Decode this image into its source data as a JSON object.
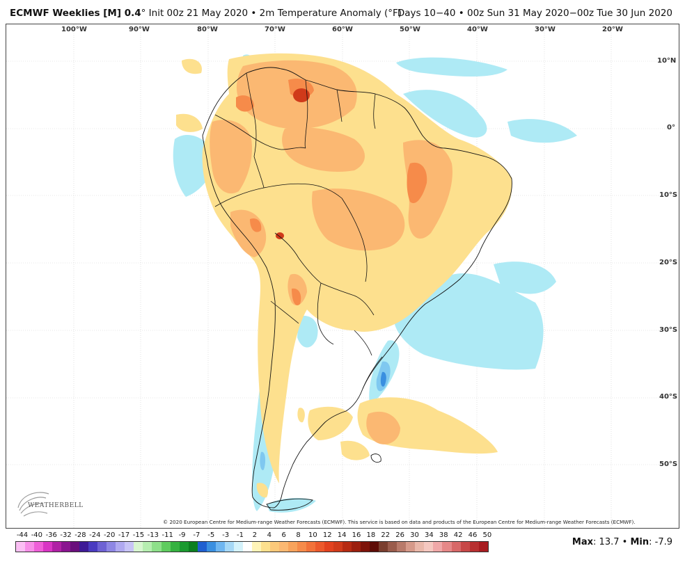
{
  "header": {
    "title_bold": "ECMWF Weeklies [M] 0.4",
    "title_rest": "° Init 00z 21 May 2020 • 2m Temperature Anomaly (°F)",
    "valid": "Days 10−40 • 00z Sun 31 May 2020−00z Tue 30 Jun 2020"
  },
  "map": {
    "lon_labels": [
      "100°W",
      "90°W",
      "80°W",
      "70°W",
      "60°W",
      "50°W",
      "40°W",
      "30°W",
      "20°W"
    ],
    "lat_labels": [
      "10°N",
      "0°",
      "10°S",
      "20°S",
      "30°S",
      "40°S",
      "50°S"
    ],
    "copyright": "© 2020 European Centre for Medium-range Weather Forecasts (ECMWF). This service is based on data and products of the European Centre for Medium-range Weather Forecasts (ECMWF).",
    "colors": {
      "ocean": "#ffffff",
      "land": "#ffffff",
      "cool_light": "#aeeaf5",
      "cool_mid": "#7fc8f0",
      "cool_strong": "#3a8fe0",
      "warm_light": "#fde08e",
      "warm_mid": "#fbb872",
      "warm_strong": "#f68b4a",
      "warm_hot": "#d03a1a",
      "borders": "#111111"
    }
  },
  "logo": {
    "text": "WEATHERBELL"
  },
  "legend": {
    "labels": [
      "-44",
      "-40",
      "-36",
      "-32",
      "-28",
      "-24",
      "-20",
      "-17",
      "-15",
      "-13",
      "-11",
      "-9",
      "-7",
      "-5",
      "-3",
      "-1",
      "2",
      "4",
      "6",
      "8",
      "10",
      "12",
      "14",
      "16",
      "18",
      "22",
      "26",
      "30",
      "34",
      "38",
      "42",
      "46",
      "50"
    ],
    "colors": [
      "#fbbff4",
      "#f78fe8",
      "#ef5fd8",
      "#d935c4",
      "#b020a5",
      "#8a1490",
      "#6a0f7c",
      "#3e1a96",
      "#4a3bc0",
      "#6e62d4",
      "#8e86e4",
      "#b0a9f0",
      "#c8c4f6",
      "#d8f6d0",
      "#b6eeb0",
      "#8ee08a",
      "#5fcc5f",
      "#35b240",
      "#1a9a2f",
      "#0c7f20",
      "#1f5fd0",
      "#3a8fe0",
      "#6fb6f0",
      "#a6d8f6",
      "#d4f2fb",
      "#ffffff",
      "#fff4b8",
      "#fde08e",
      "#fcc97a",
      "#fbb872",
      "#f8a35c",
      "#f68b4a",
      "#f2723a",
      "#ec592c",
      "#e2421f",
      "#d03a1a",
      "#b62a12",
      "#9c1f0e",
      "#7e140a",
      "#5e0c06",
      "#7a3e2e",
      "#9a5c4c",
      "#b87a6a",
      "#d69a8a",
      "#eab8aa",
      "#f5c8c0",
      "#f0a8a8",
      "#e68888",
      "#d86868",
      "#c84848",
      "#b82f30",
      "#a81c20"
    ]
  },
  "stats": {
    "max_label": "Max",
    "max_value": ": 13.7",
    "sep": "•",
    "min_label": "Min",
    "min_value": ": -7.9"
  }
}
